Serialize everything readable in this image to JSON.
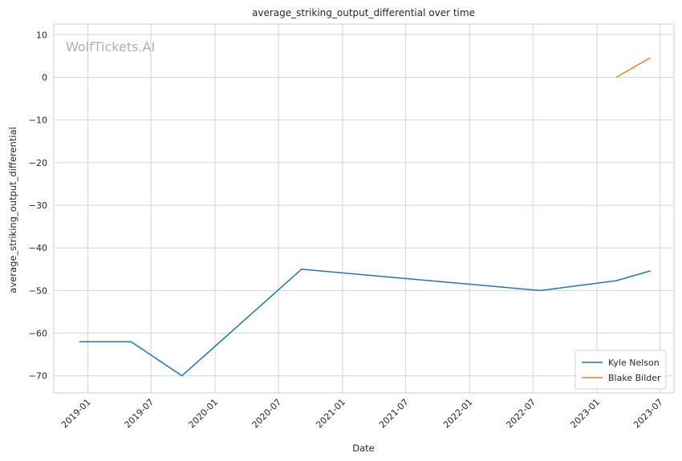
{
  "watermark": "WolfTickets.AI",
  "chart_data": {
    "type": "line",
    "title": "average_striking_output_differential over time",
    "xlabel": "Date",
    "ylabel": "average_striking_output_differential",
    "xlim": [
      "2018-09-25",
      "2023-08-10"
    ],
    "ylim": [
      -74,
      12.5
    ],
    "x_ticks": [
      "2019-01",
      "2019-07",
      "2020-01",
      "2020-07",
      "2021-01",
      "2021-07",
      "2022-01",
      "2022-07",
      "2023-01",
      "2023-07"
    ],
    "y_ticks": [
      10,
      0,
      -10,
      -20,
      -30,
      -40,
      -50,
      -60,
      -70
    ],
    "grid": true,
    "legend_position": "bottom-right",
    "series": [
      {
        "name": "Kyle Nelson",
        "color": "#1f77b4",
        "points": [
          {
            "x": "2018-12-08",
            "y": -62
          },
          {
            "x": "2019-05-05",
            "y": -62
          },
          {
            "x": "2019-09-28",
            "y": -70
          },
          {
            "x": "2020-09-05",
            "y": -45
          },
          {
            "x": "2022-07-23",
            "y": -50
          },
          {
            "x": "2023-02-25",
            "y": -47.7
          },
          {
            "x": "2023-06-03",
            "y": -45.4
          }
        ]
      },
      {
        "name": "Blake Bilder",
        "color": "#ff7f0e",
        "points": [
          {
            "x": "2023-02-25",
            "y": 0
          },
          {
            "x": "2023-06-03",
            "y": 4.6
          }
        ]
      }
    ]
  }
}
